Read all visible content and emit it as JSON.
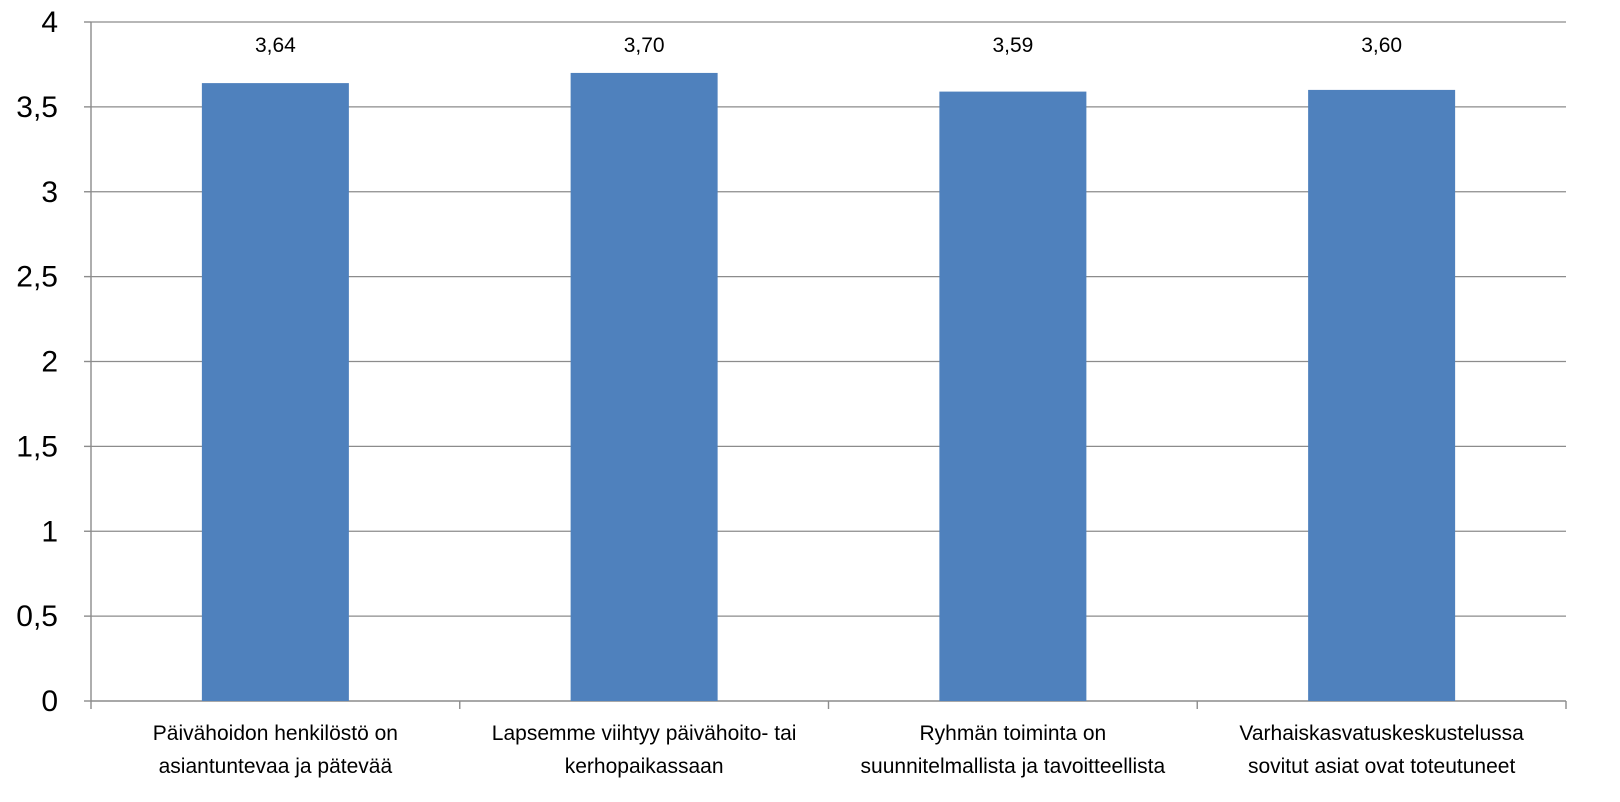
{
  "chart_data": {
    "type": "bar",
    "categories": [
      [
        "Päivähoidon henkilöstö on",
        "asiantuntevaa ja pätevää"
      ],
      [
        "Lapsemme viihtyy päivähoito- tai",
        "kerhopaikassaan"
      ],
      [
        "Ryhmän toiminta on",
        "suunnitelmallista ja tavoitteellista"
      ],
      [
        "Varhaiskasvatuskeskustelussa",
        "sovitut asiat ovat toteutuneet"
      ]
    ],
    "values": [
      3.64,
      3.7,
      3.59,
      3.6
    ],
    "data_labels": [
      "3,64",
      "3,70",
      "3,59",
      "3,60"
    ],
    "yticks": [
      0,
      0.5,
      1,
      1.5,
      2,
      2.5,
      3,
      3.5,
      4
    ],
    "ytick_labels": [
      "0",
      "0,5",
      "1",
      "1,5",
      "2",
      "2,5",
      "3",
      "3,5",
      "4"
    ],
    "ylim": [
      0,
      4
    ],
    "grid": true,
    "legend": "none",
    "colors": {
      "bar": "#4f81bd",
      "grid": "#8c8c8c"
    }
  }
}
